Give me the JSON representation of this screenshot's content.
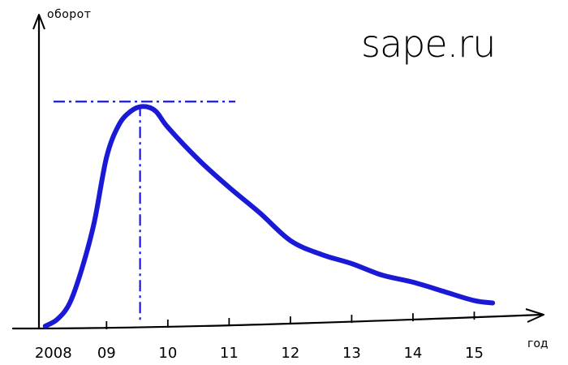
{
  "watermark_text": "sape.ru",
  "chart_data": {
    "type": "line",
    "xlabel": "год",
    "ylabel": "оборот",
    "tick_labels": [
      "2008",
      "09",
      "10",
      "11",
      "12",
      "13",
      "14",
      "15"
    ],
    "x": [
      2008.0,
      2008.2,
      2008.4,
      2008.6,
      2008.8,
      2009.0,
      2009.2,
      2009.4,
      2009.6,
      2009.8,
      2010.0,
      2010.5,
      2011.0,
      2011.5,
      2012.0,
      2012.5,
      2013.0,
      2013.5,
      2014.0,
      2014.5,
      2015.0,
      2015.3
    ],
    "y": [
      0.0,
      0.03,
      0.1,
      0.25,
      0.45,
      0.73,
      0.87,
      0.93,
      0.95,
      0.93,
      0.86,
      0.72,
      0.6,
      0.49,
      0.37,
      0.31,
      0.27,
      0.22,
      0.19,
      0.15,
      0.11,
      0.1
    ],
    "xlim": [
      2007.95,
      2016.0
    ],
    "ylim": [
      0,
      1.2
    ],
    "color": "#1a1ad6",
    "peak_guides": true,
    "grid": false,
    "legend": false
  }
}
